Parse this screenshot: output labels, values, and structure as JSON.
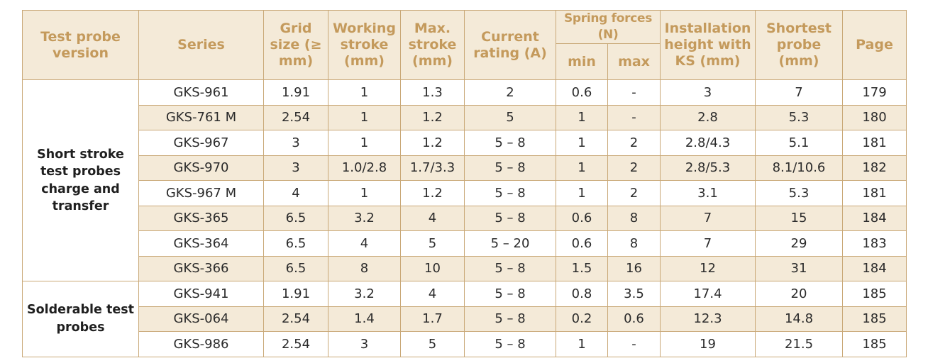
{
  "header": {
    "test_probe_version": "Test probe version",
    "series": "Series",
    "grid_size": "Grid size (≥ mm)",
    "working_stroke": "Working stroke (mm)",
    "max_stroke": "Max. stroke (mm)",
    "current_rating": "Current rating (A)",
    "spring_forces": "Spring forces (N)",
    "spring_min": "min",
    "spring_max": "max",
    "installation_height": "Installation height with KS (mm)",
    "shortest_probe": "Shortest probe (mm)",
    "page": "Page"
  },
  "groups": [
    {
      "label": "Short stroke test probes charge and transfer",
      "rows": [
        {
          "series": "GKS-961",
          "grid": "1.91",
          "working": "1",
          "max_stroke": "1.3",
          "current": "2",
          "min": "0.6",
          "max": "-",
          "install": "3",
          "shortest": "7",
          "page": "179"
        },
        {
          "series": "GKS-761 M",
          "grid": "2.54",
          "working": "1",
          "max_stroke": "1.2",
          "current": "5",
          "min": "1",
          "max": "-",
          "install": "2.8",
          "shortest": "5.3",
          "page": "180"
        },
        {
          "series": "GKS-967",
          "grid": "3",
          "working": "1",
          "max_stroke": "1.2",
          "current": "5 – 8",
          "min": "1",
          "max": "2",
          "install": "2.8/4.3",
          "shortest": "5.1",
          "page": "181"
        },
        {
          "series": "GKS-970",
          "grid": "3",
          "working": "1.0/2.8",
          "max_stroke": "1.7/3.3",
          "current": "5 – 8",
          "min": "1",
          "max": "2",
          "install": "2.8/5.3",
          "shortest": "8.1/10.6",
          "page": "182"
        },
        {
          "series": "GKS-967 M",
          "grid": "4",
          "working": "1",
          "max_stroke": "1.2",
          "current": "5 – 8",
          "min": "1",
          "max": "2",
          "install": "3.1",
          "shortest": "5.3",
          "page": "181"
        },
        {
          "series": "GKS-365",
          "grid": "6.5",
          "working": "3.2",
          "max_stroke": "4",
          "current": "5 – 8",
          "min": "0.6",
          "max": "8",
          "install": "7",
          "shortest": "15",
          "page": "184"
        },
        {
          "series": "GKS-364",
          "grid": "6.5",
          "working": "4",
          "max_stroke": "5",
          "current": "5 – 20",
          "min": "0.6",
          "max": "8",
          "install": "7",
          "shortest": "29",
          "page": "183"
        },
        {
          "series": "GKS-366",
          "grid": "6.5",
          "working": "8",
          "max_stroke": "10",
          "current": "5 – 8",
          "min": "1.5",
          "max": "16",
          "install": "12",
          "shortest": "31",
          "page": "184"
        }
      ]
    },
    {
      "label": "Solderable test probes",
      "rows": [
        {
          "series": "GKS-941",
          "grid": "1.91",
          "working": "3.2",
          "max_stroke": "4",
          "current": "5 – 8",
          "min": "0.8",
          "max": "3.5",
          "install": "17.4",
          "shortest": "20",
          "page": "185"
        },
        {
          "series": "GKS-064",
          "grid": "2.54",
          "working": "1.4",
          "max_stroke": "1.7",
          "current": "5 – 8",
          "min": "0.2",
          "max": "0.6",
          "install": "12.3",
          "shortest": "14.8",
          "page": "185"
        },
        {
          "series": "GKS-986",
          "grid": "2.54",
          "working": "3",
          "max_stroke": "5",
          "current": "5 – 8",
          "min": "1",
          "max": "-",
          "install": "19",
          "shortest": "21.5",
          "page": "185"
        }
      ]
    }
  ],
  "colors": {
    "header_text": "#c49a5c",
    "header_bg": "#f4ead8",
    "border": "#c9a877",
    "shaded_row_bg": "#f4ead8"
  }
}
